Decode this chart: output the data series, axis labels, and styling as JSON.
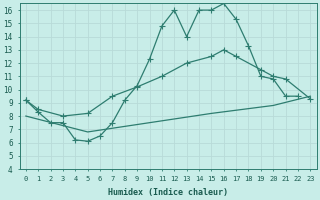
{
  "xlabel": "Humidex (Indice chaleur)",
  "background_color": "#c8ede8",
  "grid_color": "#b8dbd8",
  "line_color": "#2e7d70",
  "xlim": [
    -0.5,
    23.5
  ],
  "ylim": [
    4,
    16.5
  ],
  "xticks": [
    0,
    1,
    2,
    3,
    4,
    5,
    6,
    7,
    8,
    9,
    10,
    11,
    12,
    13,
    14,
    15,
    16,
    17,
    18,
    19,
    20,
    21,
    22,
    23
  ],
  "yticks": [
    4,
    5,
    6,
    7,
    8,
    9,
    10,
    11,
    12,
    13,
    14,
    15,
    16
  ],
  "line1_x": [
    0,
    1,
    2,
    3,
    4,
    5,
    6,
    7,
    8,
    9,
    10,
    11,
    12,
    13,
    14,
    15,
    16,
    17,
    18,
    19,
    20,
    21,
    22
  ],
  "line1_y": [
    9.2,
    8.3,
    7.5,
    7.5,
    6.2,
    6.1,
    6.5,
    7.5,
    9.2,
    10.3,
    12.3,
    14.8,
    16.0,
    14.0,
    16.0,
    16.0,
    16.5,
    15.3,
    13.3,
    11.0,
    10.8,
    9.5,
    9.5
  ],
  "line2_x": [
    0,
    1,
    3,
    5,
    7,
    9,
    11,
    13,
    15,
    16,
    17,
    19,
    20,
    21,
    23
  ],
  "line2_y": [
    9.2,
    8.5,
    8.0,
    8.2,
    9.5,
    10.2,
    11.0,
    12.0,
    12.5,
    13.0,
    12.5,
    11.5,
    11.0,
    10.8,
    9.3
  ],
  "line3_x": [
    0,
    5,
    10,
    15,
    20,
    23
  ],
  "line3_y": [
    8.0,
    6.8,
    7.5,
    8.2,
    8.8,
    9.5
  ],
  "marker_size": 2.5,
  "line_width": 0.9
}
